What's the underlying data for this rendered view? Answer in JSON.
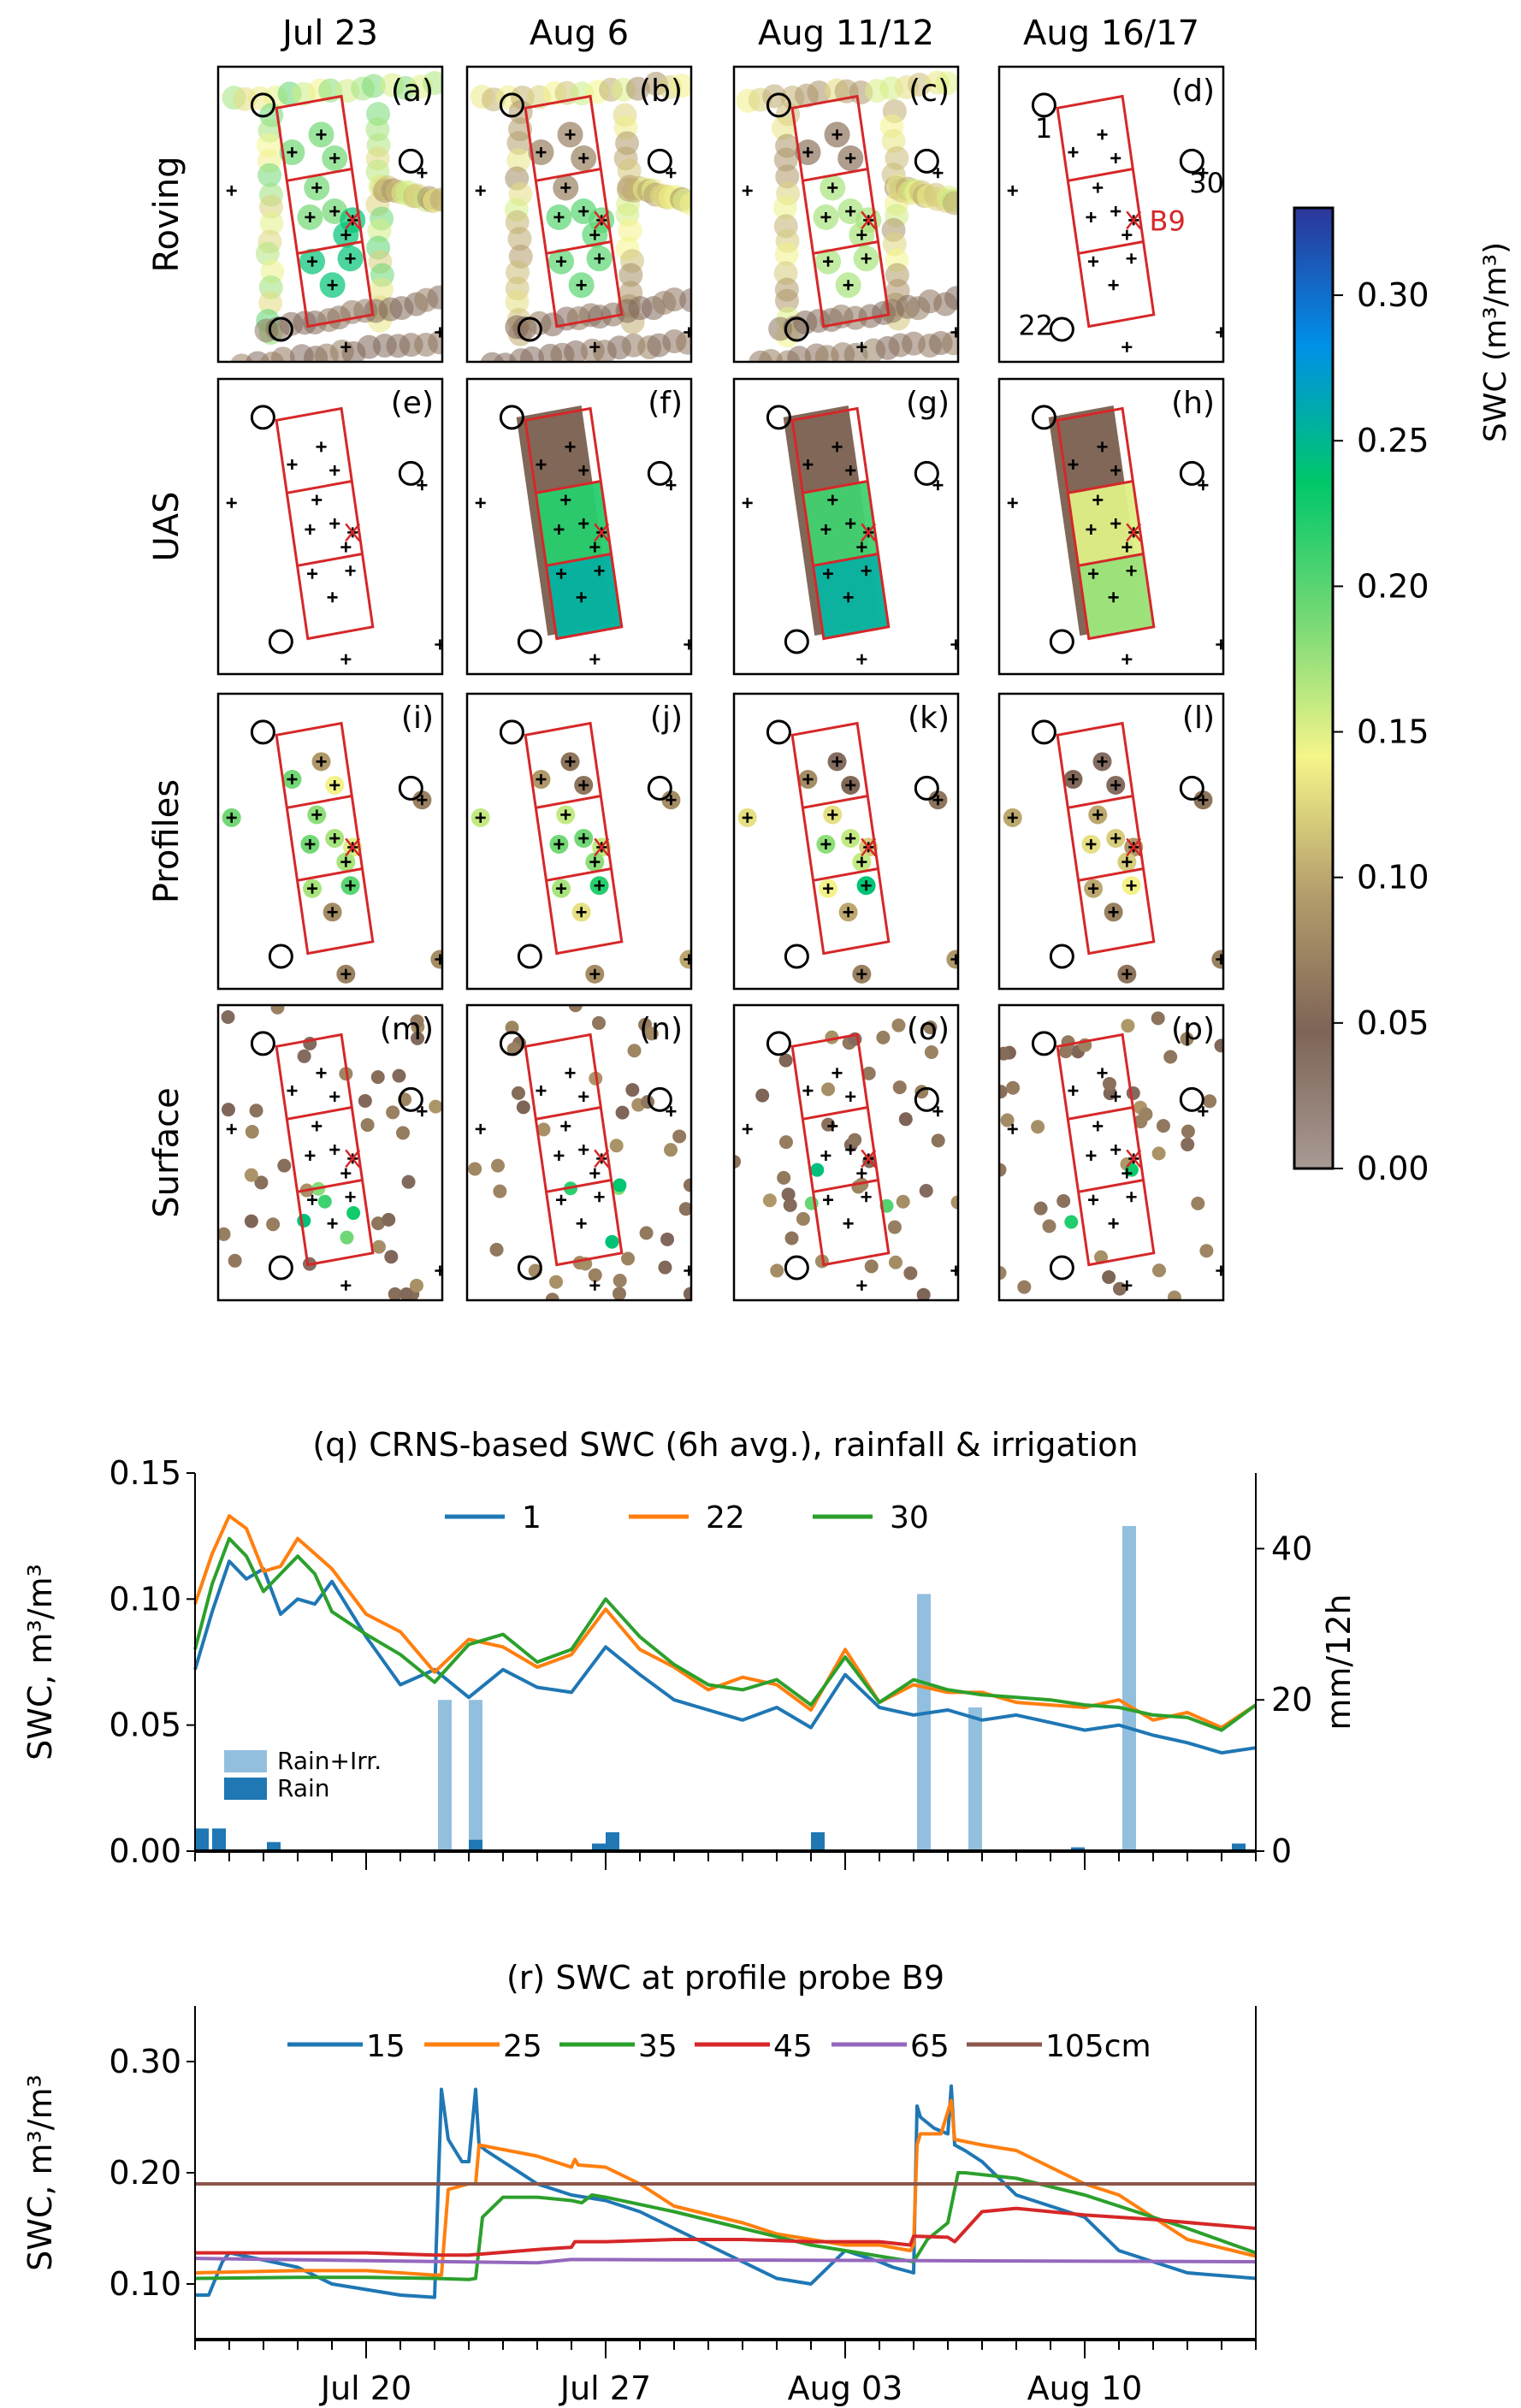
{
  "figure": {
    "columns": [
      "Jul 23",
      "Aug 6",
      "Aug 11/12",
      "Aug 16/17"
    ],
    "rows": [
      "Roving",
      "UAS",
      "Profiles",
      "Surface"
    ],
    "panel_labels": [
      "(a)",
      "(b)",
      "(c)",
      "(d)",
      "(e)",
      "(f)",
      "(g)",
      "(h)",
      "(i)",
      "(j)",
      "(k)",
      "(l)",
      "(m)",
      "(n)",
      "(o)",
      "(p)"
    ],
    "annotations": {
      "probe": "B9",
      "stations": [
        "1",
        "22",
        "30"
      ]
    },
    "colorbar": {
      "label": "SWC (m³/m³)",
      "ticks": [
        "0.00",
        "0.05",
        "0.10",
        "0.15",
        "0.20",
        "0.25",
        "0.30"
      ],
      "range": [
        0,
        0.33
      ],
      "colors": [
        "#a89a94",
        "#7e6457",
        "#b49d6b",
        "#f5f58a",
        "#76d975",
        "#00c86a",
        "#0090e8",
        "#2c3599"
      ]
    }
  },
  "chart_data": [
    {
      "type": "line",
      "title": "(q) CRNS-based SWC (6h avg.), rainfall & irrigation",
      "ylabel": "SWC, m³/m³",
      "ylabel_right": "mm/12h",
      "ylim": [
        0,
        0.15
      ],
      "ylim_right": [
        0,
        50
      ],
      "yticks": [
        "0.00",
        "0.05",
        "0.10",
        "0.15"
      ],
      "yticks_right": [
        "0",
        "20",
        "40"
      ],
      "xlim_days": [
        0,
        31
      ],
      "legend": [
        "1",
        "22",
        "30"
      ],
      "series": [
        {
          "name": "1",
          "color": "#1f77b4",
          "x": [
            0,
            0.5,
            1,
            1.5,
            2,
            2.5,
            3,
            3.5,
            4,
            5,
            6,
            7,
            8,
            9,
            10,
            11,
            12,
            13,
            14,
            15,
            16,
            17,
            18,
            19,
            20,
            21,
            22,
            23,
            24,
            25,
            26,
            27,
            28,
            29,
            30,
            31
          ],
          "values": [
            0.072,
            0.095,
            0.115,
            0.108,
            0.112,
            0.094,
            0.1,
            0.098,
            0.107,
            0.085,
            0.066,
            0.072,
            0.061,
            0.072,
            0.065,
            0.063,
            0.081,
            0.07,
            0.06,
            0.056,
            0.052,
            0.057,
            0.049,
            0.07,
            0.057,
            0.054,
            0.056,
            0.052,
            0.054,
            0.051,
            0.048,
            0.05,
            0.046,
            0.043,
            0.039,
            0.041
          ]
        },
        {
          "name": "22",
          "color": "#ff7f0e",
          "x": [
            0,
            0.5,
            1,
            1.5,
            2,
            2.5,
            3,
            3.5,
            4,
            5,
            6,
            7,
            8,
            9,
            10,
            11,
            12,
            13,
            14,
            15,
            16,
            17,
            18,
            19,
            20,
            21,
            22,
            23,
            24,
            25,
            26,
            27,
            28,
            29,
            30,
            31
          ],
          "values": [
            0.098,
            0.118,
            0.133,
            0.128,
            0.111,
            0.113,
            0.124,
            0.118,
            0.112,
            0.094,
            0.087,
            0.071,
            0.084,
            0.081,
            0.073,
            0.078,
            0.096,
            0.08,
            0.073,
            0.064,
            0.069,
            0.066,
            0.056,
            0.08,
            0.059,
            0.066,
            0.063,
            0.063,
            0.059,
            0.058,
            0.057,
            0.06,
            0.052,
            0.055,
            0.049,
            0.058
          ]
        },
        {
          "name": "30",
          "color": "#2ca02c",
          "x": [
            0,
            0.5,
            1,
            1.5,
            2,
            2.5,
            3,
            3.5,
            4,
            5,
            6,
            7,
            8,
            9,
            10,
            11,
            12,
            13,
            14,
            15,
            16,
            17,
            18,
            19,
            20,
            21,
            22,
            23,
            24,
            25,
            26,
            27,
            28,
            29,
            30,
            31
          ],
          "values": [
            0.08,
            0.106,
            0.124,
            0.117,
            0.103,
            0.11,
            0.117,
            0.11,
            0.095,
            0.086,
            0.078,
            0.067,
            0.082,
            0.086,
            0.075,
            0.08,
            0.1,
            0.085,
            0.074,
            0.066,
            0.064,
            0.068,
            0.058,
            0.077,
            0.059,
            0.068,
            0.064,
            0.062,
            0.061,
            0.06,
            0.058,
            0.057,
            0.054,
            0.053,
            0.048,
            0.058
          ]
        }
      ],
      "bars": [
        {
          "name": "Rain+Irr.",
          "color": "#93bfdf",
          "x": [
            7.3,
            8.2,
            21.3,
            22.8,
            27.3
          ],
          "values": [
            20,
            20,
            34,
            19,
            43
          ]
        },
        {
          "name": "Rain",
          "color": "#1f77b4",
          "x": [
            0.2,
            0.7,
            1.3,
            2.3,
            8.2,
            11.8,
            12.2,
            18.2,
            25.8,
            30.5
          ],
          "values": [
            3,
            3,
            0.2,
            1.2,
            1.5,
            1,
            2.5,
            2.5,
            0.5,
            1
          ]
        }
      ]
    },
    {
      "type": "line",
      "title": "(r) SWC at profile probe B9",
      "ylabel": "SWC, m³/m³",
      "ylim": [
        0.05,
        0.35
      ],
      "yticks": [
        "0.10",
        "0.20",
        "0.30"
      ],
      "xticks": [
        "Jul 20",
        "Jul 27",
        "Aug 03",
        "Aug 10"
      ],
      "xtick_days": [
        5,
        12,
        19,
        26
      ],
      "xlim_days": [
        0,
        31
      ],
      "legend": [
        "15",
        "25",
        "35",
        "45",
        "65",
        "105cm"
      ],
      "series": [
        {
          "name": "15",
          "color": "#1f77b4",
          "x": [
            0,
            0.4,
            0.8,
            1,
            3,
            4,
            5,
            6,
            7,
            7.2,
            7.4,
            7.8,
            8,
            8.2,
            8.3,
            8.5,
            10,
            11,
            12,
            13,
            14,
            16,
            17,
            18,
            19,
            20,
            20.4,
            21,
            21.1,
            21.2,
            21.6,
            22,
            22.1,
            22.2,
            22.5,
            23,
            24,
            26,
            27,
            28,
            29,
            31
          ],
          "values": [
            0.09,
            0.09,
            0.12,
            0.128,
            0.115,
            0.1,
            0.095,
            0.09,
            0.088,
            0.275,
            0.23,
            0.21,
            0.21,
            0.275,
            0.225,
            0.22,
            0.19,
            0.18,
            0.175,
            0.165,
            0.15,
            0.12,
            0.105,
            0.1,
            0.13,
            0.12,
            0.115,
            0.11,
            0.26,
            0.25,
            0.24,
            0.235,
            0.278,
            0.225,
            0.22,
            0.21,
            0.18,
            0.16,
            0.13,
            0.12,
            0.11,
            0.105
          ]
        },
        {
          "name": "25",
          "color": "#ff7f0e",
          "x": [
            0,
            3,
            5,
            6,
            7,
            7.2,
            7.4,
            8,
            8.2,
            8.3,
            10,
            11,
            11.1,
            11.2,
            12,
            13,
            14,
            16,
            17,
            18,
            19,
            20,
            20.9,
            21,
            21.1,
            21.2,
            21.8,
            22.1,
            22.2,
            23,
            24,
            26,
            27,
            28,
            29,
            31
          ],
          "values": [
            0.11,
            0.112,
            0.112,
            0.11,
            0.108,
            0.108,
            0.185,
            0.19,
            0.19,
            0.225,
            0.215,
            0.205,
            0.212,
            0.207,
            0.205,
            0.19,
            0.17,
            0.155,
            0.145,
            0.14,
            0.135,
            0.135,
            0.13,
            0.135,
            0.225,
            0.235,
            0.235,
            0.265,
            0.23,
            0.225,
            0.22,
            0.19,
            0.18,
            0.16,
            0.14,
            0.125
          ]
        },
        {
          "name": "35",
          "color": "#2ca02c",
          "x": [
            0,
            3,
            5,
            7,
            8,
            8.2,
            8.4,
            9,
            10,
            11,
            11.3,
            11.6,
            12,
            14,
            16,
            18,
            20,
            21,
            21.4,
            22,
            22.3,
            22.5,
            24,
            26,
            27,
            28,
            29,
            31
          ],
          "values": [
            0.105,
            0.106,
            0.106,
            0.105,
            0.104,
            0.105,
            0.16,
            0.178,
            0.178,
            0.175,
            0.173,
            0.18,
            0.178,
            0.165,
            0.15,
            0.135,
            0.125,
            0.12,
            0.14,
            0.155,
            0.2,
            0.2,
            0.195,
            0.18,
            0.17,
            0.16,
            0.15,
            0.128
          ]
        },
        {
          "name": "45",
          "color": "#d62728",
          "x": [
            0,
            5,
            7,
            8,
            10,
            11,
            11.1,
            12,
            14,
            16,
            18,
            20,
            20.9,
            21,
            22,
            22.2,
            23,
            24,
            26,
            28,
            31
          ],
          "values": [
            0.128,
            0.128,
            0.126,
            0.126,
            0.131,
            0.133,
            0.138,
            0.138,
            0.14,
            0.14,
            0.138,
            0.138,
            0.135,
            0.143,
            0.142,
            0.138,
            0.165,
            0.168,
            0.162,
            0.158,
            0.15
          ]
        },
        {
          "name": "65",
          "color": "#9467bd",
          "x": [
            0,
            5,
            10,
            11,
            31
          ],
          "values": [
            0.123,
            0.121,
            0.119,
            0.122,
            0.12
          ]
        },
        {
          "name": "105cm",
          "color": "#8c564b",
          "x": [
            0,
            31
          ],
          "values": [
            0.19,
            0.19
          ]
        }
      ]
    }
  ]
}
